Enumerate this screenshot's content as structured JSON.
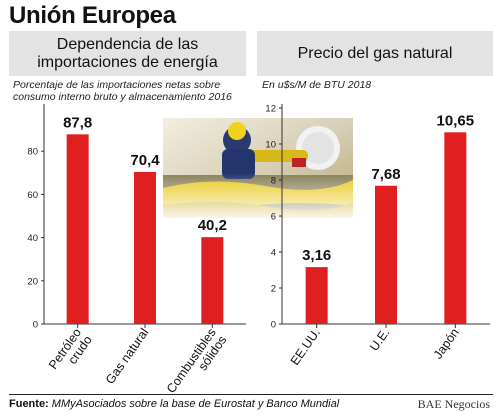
{
  "title": "Unión Europea",
  "panels": {
    "left": {
      "title": "Dependencia de las importaciones de energía",
      "subtitle": "Porcentaje de las importaciones netas sobre consumo interno bruto y almacenamiento 2016"
    },
    "right": {
      "title": "Precio del gas natural",
      "subtitle": "En u$s/M de BTU 2018"
    }
  },
  "footer": {
    "label": "Fuente:",
    "text": "MMyAsociados sobre la base de Eurostat y Banco Mundial",
    "brand": "BAE Negocios"
  },
  "colors": {
    "bar": "#e02020",
    "header_bg": "#e3e3e3",
    "text": "#111111"
  },
  "chart_data": [
    {
      "type": "bar",
      "title": "Dependencia de las importaciones de energía",
      "categories": [
        "Petróleo crudo",
        "Gas natural",
        "Combustibles sólidos"
      ],
      "values": [
        87.8,
        70.4,
        40.2
      ],
      "value_labels": [
        "87,8",
        "70,4",
        "40,2"
      ],
      "yticks": [
        "0",
        "20",
        "40",
        "60",
        "80"
      ],
      "ylim": [
        0,
        100
      ],
      "grid": false
    },
    {
      "type": "bar",
      "title": "Precio del gas natural",
      "categories": [
        "EE.UU.",
        "U.E.",
        "Japón"
      ],
      "values": [
        3.16,
        7.68,
        10.65
      ],
      "value_labels": [
        "3,16",
        "7,68",
        "10,65"
      ],
      "yticks": [
        "0",
        "2",
        "4",
        "6",
        "8",
        "10",
        "12"
      ],
      "ylim": [
        0,
        12
      ],
      "grid": false
    }
  ]
}
